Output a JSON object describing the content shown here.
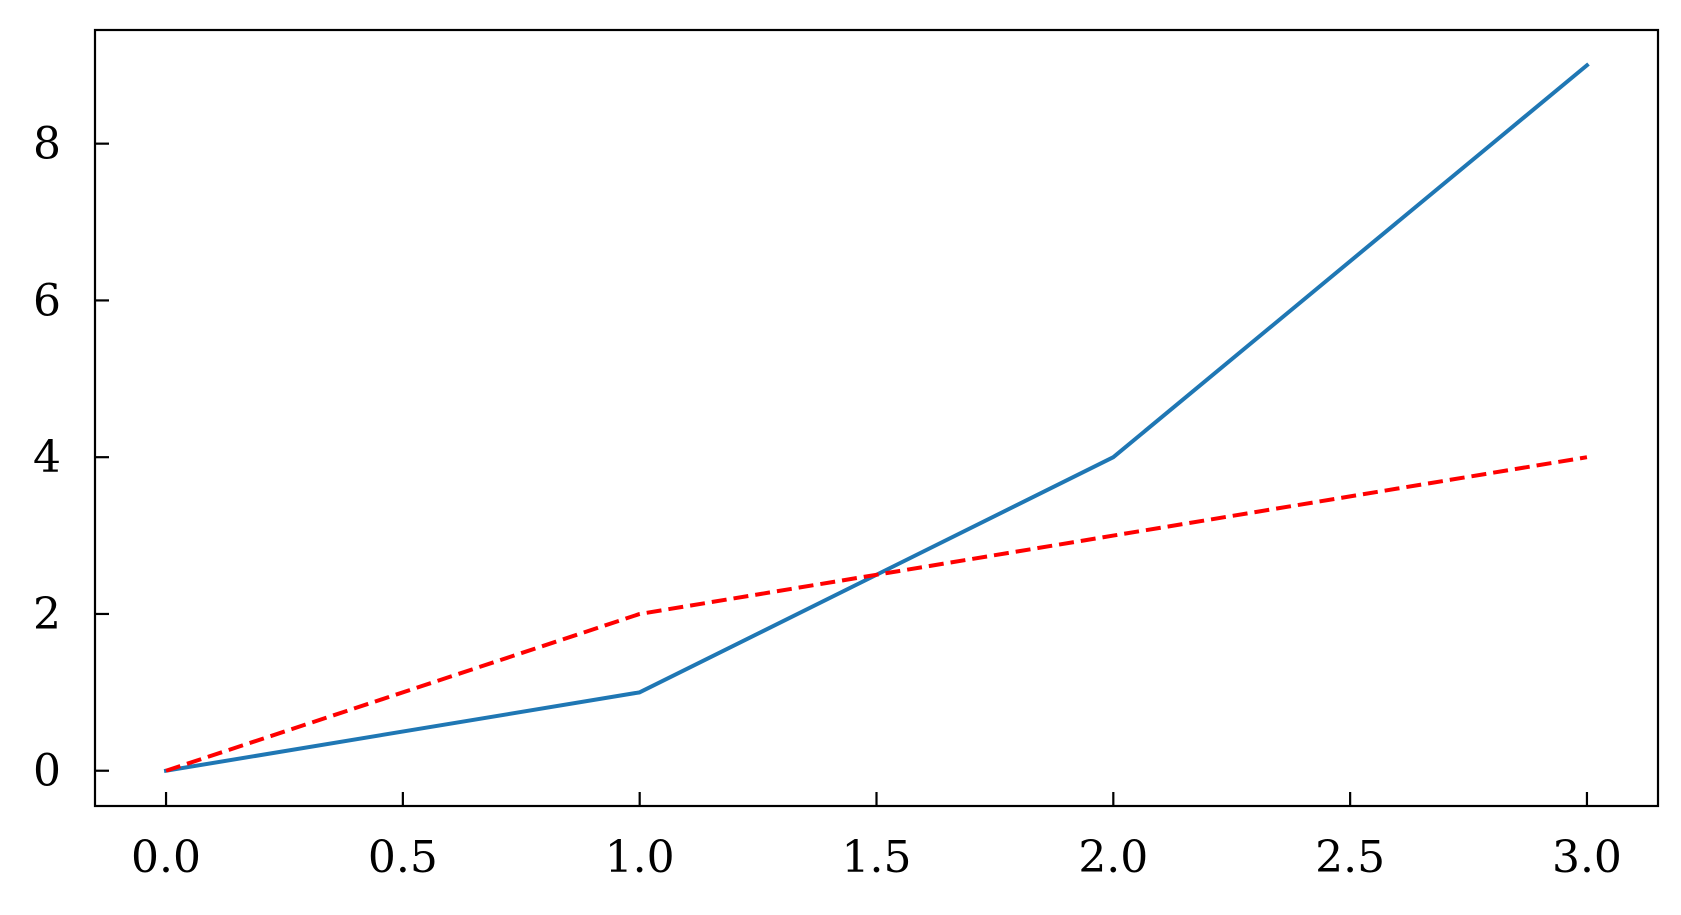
{
  "chart_data": {
    "type": "line",
    "title": "",
    "xlabel": "",
    "ylabel": "",
    "xlim": [
      -0.15,
      3.15
    ],
    "ylim": [
      -0.45,
      9.45
    ],
    "xticks": [
      0.0,
      0.5,
      1.0,
      1.5,
      2.0,
      2.5,
      3.0
    ],
    "xtick_labels": [
      "0.0",
      "0.5",
      "1.0",
      "1.5",
      "2.0",
      "2.5",
      "3.0"
    ],
    "yticks": [
      0,
      2,
      4,
      6,
      8
    ],
    "ytick_labels": [
      "0",
      "2",
      "4",
      "6",
      "8"
    ],
    "grid": false,
    "tick_direction": "in",
    "series": [
      {
        "x": [
          0,
          1,
          2,
          3
        ],
        "y": [
          0,
          1,
          4,
          9
        ],
        "color": "#1f77b4",
        "linestyle": "solid"
      },
      {
        "x": [
          0,
          1,
          2,
          3
        ],
        "y": [
          0,
          2,
          3,
          4
        ],
        "color": "#ff0000",
        "linestyle": "dashed"
      }
    ]
  }
}
